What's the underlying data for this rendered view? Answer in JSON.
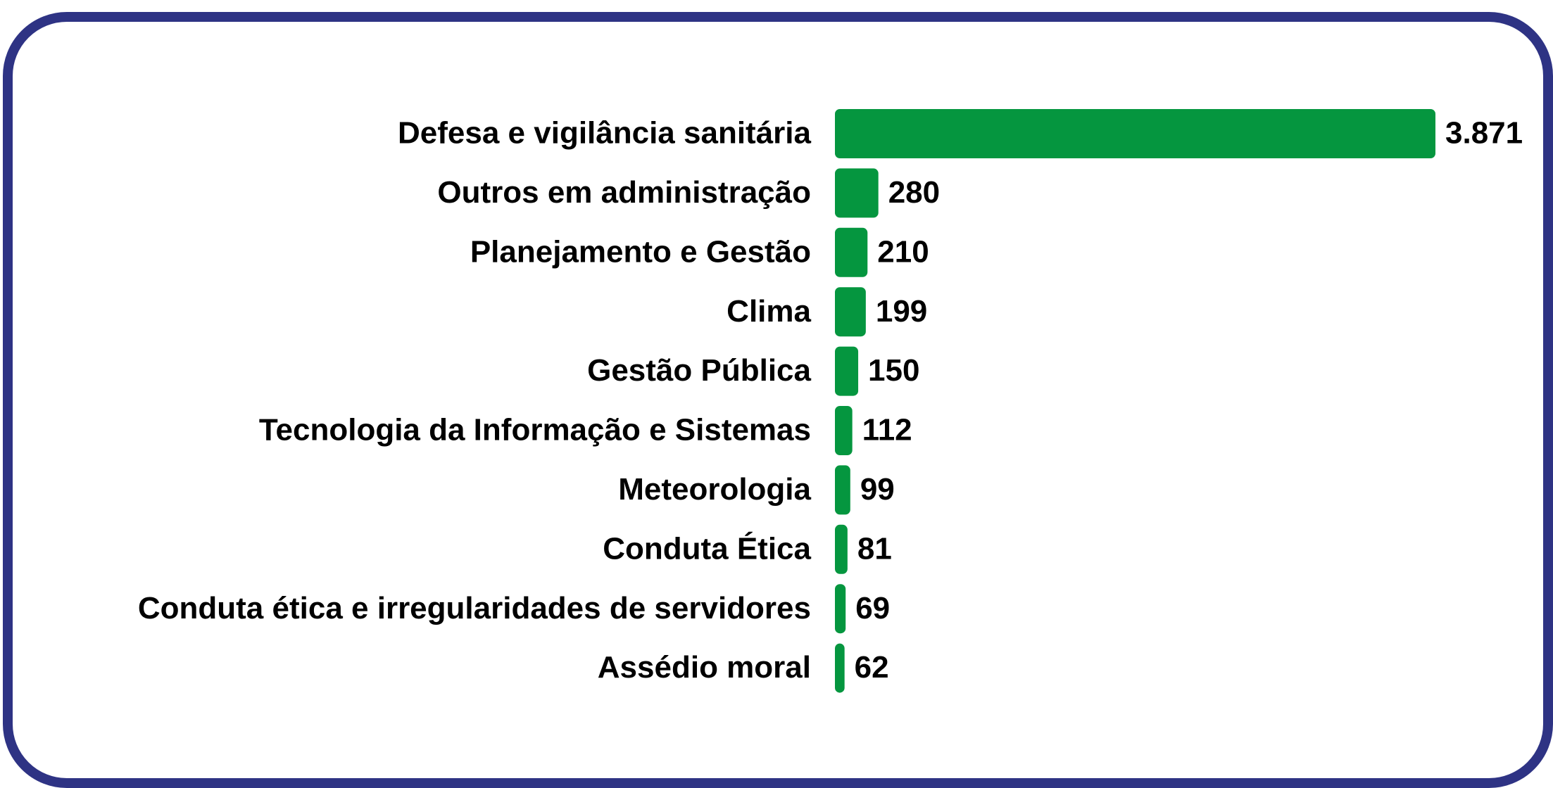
{
  "chart_data": {
    "type": "bar",
    "orientation": "horizontal",
    "categories": [
      "Defesa e vigilância sanitária",
      "Outros em administração",
      "Planejamento e Gestão",
      "Clima",
      "Gestão Pública",
      "Tecnologia da Informação e Sistemas",
      "Meteorologia",
      "Conduta Ética",
      "Conduta ética e irregularidades de servidores",
      "Assédio moral"
    ],
    "values": [
      3871,
      280,
      210,
      199,
      150,
      112,
      99,
      81,
      69,
      62
    ],
    "value_labels": [
      "3.871",
      "280",
      "210",
      "199",
      "150",
      "112",
      "99",
      "81",
      "69",
      "62"
    ],
    "color": "#05963f"
  }
}
